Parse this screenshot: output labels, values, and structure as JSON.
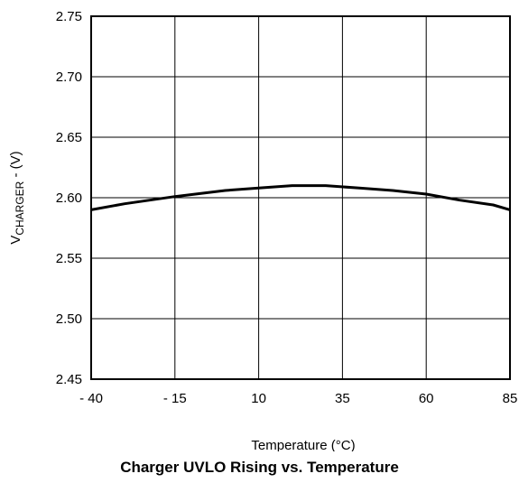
{
  "chart_data": {
    "type": "line",
    "title": "Charger UVLO Rising vs. Temperature",
    "xlabel": "Temperature (°C)",
    "ylabel": {
      "main": "V",
      "subscript": "CHARGER",
      "suffix": " - (V)"
    },
    "x_ticks": [
      "- 40",
      "- 15",
      "10",
      "35",
      "60",
      "85"
    ],
    "y_ticks": [
      "2.75",
      "2.70",
      "2.65",
      "2.60",
      "2.55",
      "2.50",
      "2.45"
    ],
    "xlim": [
      -40,
      85
    ],
    "ylim": [
      2.45,
      2.75
    ],
    "grid": true,
    "series": [
      {
        "x": [
          -40,
          -30,
          -15,
          0,
          10,
          20,
          25,
          30,
          40,
          50,
          60,
          70,
          80,
          85
        ],
        "y": [
          2.59,
          2.595,
          2.601,
          2.606,
          2.608,
          2.61,
          2.61,
          2.61,
          2.608,
          2.606,
          2.603,
          2.598,
          2.594,
          2.59
        ]
      }
    ]
  }
}
